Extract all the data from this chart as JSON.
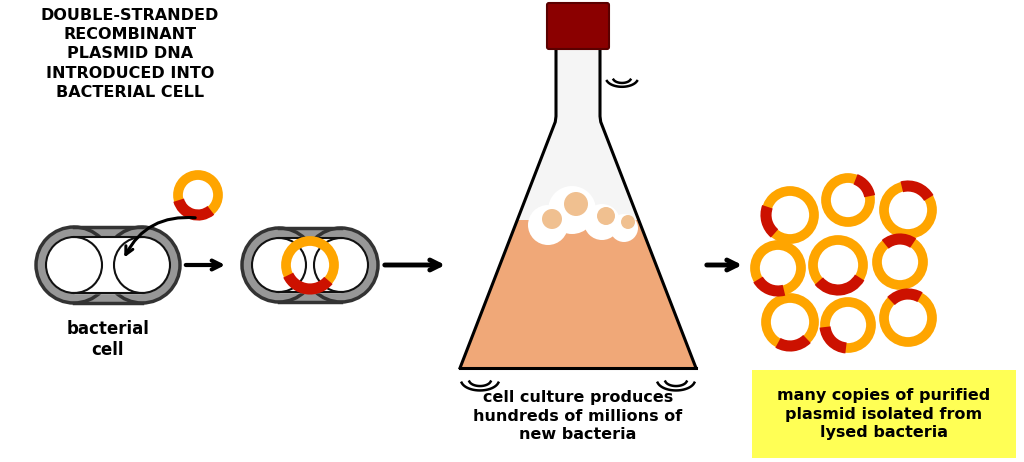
{
  "bg_color": "#ffffff",
  "orange_color": "#FFA500",
  "red_color": "#CC1100",
  "gray_outer": "#909090",
  "gray_inner_edge": "#222222",
  "flask_liquid_color": "#F0A878",
  "flask_stopper_color": "#8B0000",
  "yellow_box_color": "#FFFF55",
  "title_text": "DOUBLE-STRANDED\nRECOMBINANT\nPLASMID DNA\nINTRODUCED INTO\nBACTERIAL CELL",
  "label_bacterial": "bacterial\ncell",
  "label_culture": "cell culture produces\nhundreds of millions of\nnew bacteria",
  "label_copies": "many copies of purified\nplasmid isolated from\nlysed bacteria",
  "ring_positions": [
    [
      790,
      215,
      24,
      160,
      230
    ],
    [
      848,
      200,
      22,
      10,
      70
    ],
    [
      908,
      210,
      24,
      30,
      105
    ],
    [
      778,
      268,
      23,
      210,
      285
    ],
    [
      838,
      265,
      25,
      220,
      330
    ],
    [
      900,
      262,
      23,
      55,
      130
    ],
    [
      790,
      322,
      24,
      240,
      315
    ],
    [
      848,
      325,
      23,
      185,
      265
    ],
    [
      908,
      318,
      24,
      60,
      135
    ]
  ]
}
